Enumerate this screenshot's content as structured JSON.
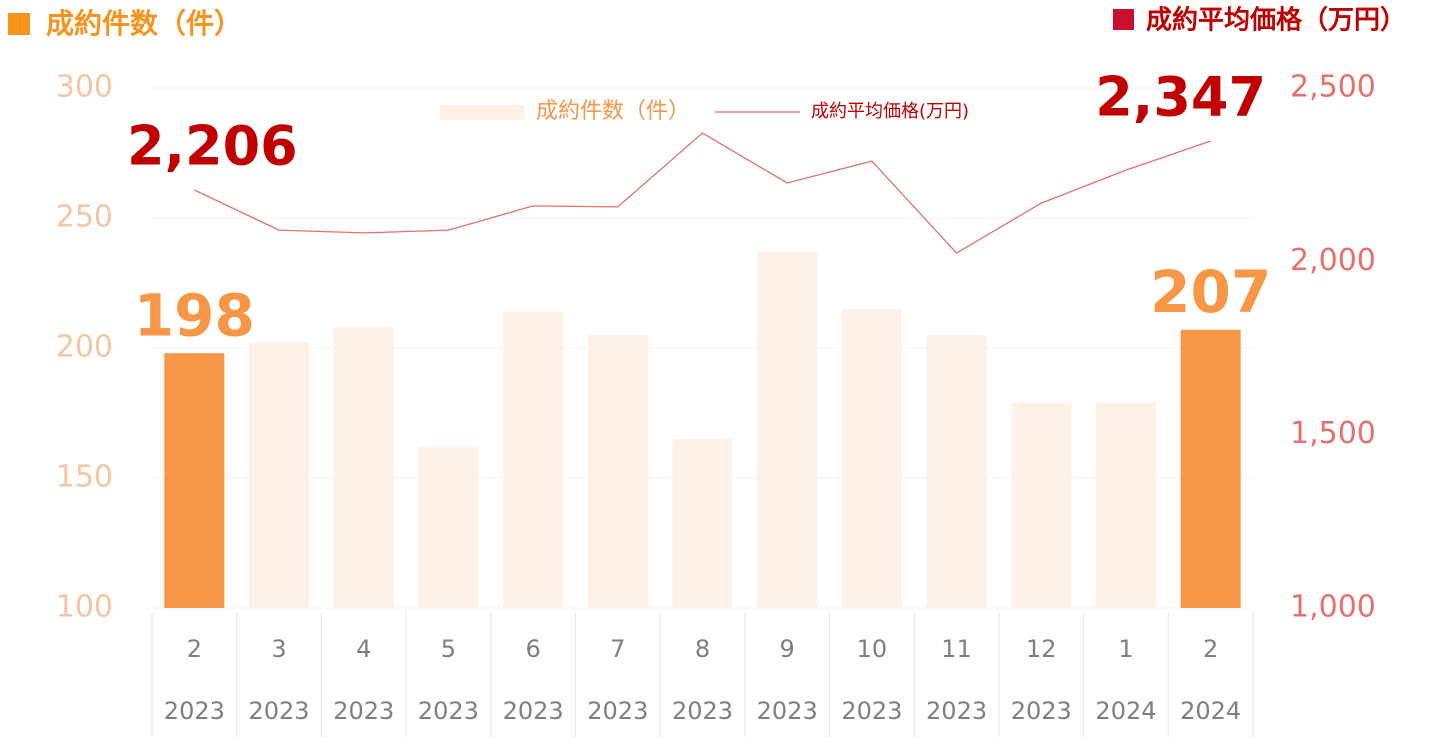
{
  "chart_data": {
    "type": "bar",
    "y_label": "成約件数（件）",
    "y2_label": "成約平均価格（万円）",
    "categories": [
      "2",
      "3",
      "4",
      "5",
      "6",
      "7",
      "8",
      "9",
      "10",
      "11",
      "12",
      "1",
      "2"
    ],
    "years": [
      "2023",
      "2023",
      "2023",
      "2023",
      "2023",
      "2023",
      "2023",
      "2023",
      "2023",
      "2023",
      "2023",
      "2024",
      "2024"
    ],
    "series": [
      {
        "name": "成約件数（件）",
        "type": "bar",
        "color": "#fdf1e8",
        "colors": [
          "#f79646",
          "#fdf1e8",
          "#fdf1e8",
          "#fdf1e8",
          "#fdf1e8",
          "#fdf1e8",
          "#fdf1e8",
          "#fdf1e8",
          "#fdf1e8",
          "#fdf1e8",
          "#fdf1e8",
          "#fdf1e8",
          "#f79646"
        ],
        "values": [
          198,
          202,
          208,
          162,
          214,
          205,
          165,
          237,
          215,
          205,
          179,
          179,
          207
        ],
        "value_labels": [
          "198",
          null,
          null,
          null,
          null,
          null,
          null,
          null,
          null,
          null,
          null,
          null,
          "207"
        ]
      },
      {
        "name": "成約平均価格(万円)",
        "type": "line",
        "axis": "y2",
        "color": "#e8706a",
        "values": [
          2206,
          2090,
          2082,
          2090,
          2160,
          2157,
          2370,
          2226,
          2289,
          2024,
          2168,
          2263,
          2347
        ],
        "value_labels": [
          "2,206",
          null,
          null,
          null,
          null,
          null,
          null,
          null,
          null,
          null,
          null,
          null,
          "2,347"
        ]
      }
    ],
    "ylim": [
      100,
      300
    ],
    "yticks": [
      100,
      150,
      200,
      250,
      300
    ],
    "y2lim": [
      1000,
      2500
    ],
    "y2ticks": [
      {
        "value": 1000,
        "label": "1,000"
      },
      {
        "value": 1500,
        "label": "1,500"
      },
      {
        "value": 2000,
        "label": "2,000"
      },
      {
        "value": 2500,
        "label": "2,500"
      }
    ],
    "grid": true,
    "legend": "top"
  }
}
